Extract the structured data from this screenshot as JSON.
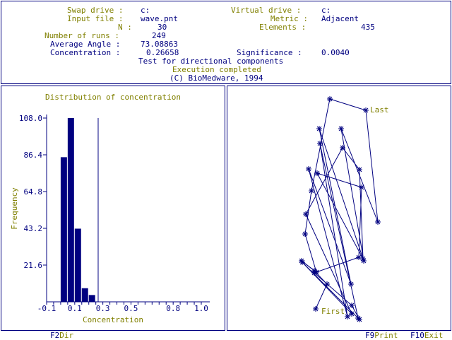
{
  "colors": {
    "olive": "#808000",
    "navy": "#000080",
    "background": "#ffffff"
  },
  "header": {
    "swap_drive_label": "Swap drive :",
    "swap_drive_value": "c:",
    "virtual_drive_label": "Virtual drive :",
    "virtual_drive_value": "c:",
    "input_file_label": "Input file :",
    "input_file_value": "wave.pnt",
    "metric_label": "Metric :",
    "metric_value": "Adjacent",
    "n_label": "N :",
    "n_value": "30",
    "elements_label": "Elements :",
    "elements_value": "435",
    "runs_label": "Number of runs :",
    "runs_value": "249",
    "angle_label": "Average Angle :",
    "angle_value": "73.08863",
    "concentration_label": "Concentration :",
    "concentration_value": "0.26658",
    "significance_label": "Significance :",
    "significance_value": "0.0040",
    "test_line": "Test for directional components",
    "status_line": "Execution completed",
    "copyright_line": "(C) BioMedware, 1994"
  },
  "chart_data": {
    "type": "bar",
    "title": "Distribution of concentration",
    "xlabel": "Concentration",
    "ylabel": "Frequency",
    "y_ticks": [
      "108.0",
      "86.4",
      "64.8",
      "43.2",
      "21.6"
    ],
    "y_tick_values": [
      108.0,
      86.4,
      64.8,
      43.2,
      21.6
    ],
    "x_ticks": [
      "-0.1",
      "0.1",
      "0.3",
      "0.5",
      "0.8",
      "1.0"
    ],
    "x_tick_values": [
      -0.1,
      0.1,
      0.3,
      0.5,
      0.8,
      1.0
    ],
    "ylim": [
      0,
      108
    ],
    "xlim": [
      -0.1,
      1.0
    ],
    "bars": [
      {
        "x0": 0.0,
        "x1": 0.05,
        "value": 85
      },
      {
        "x0": 0.05,
        "x1": 0.1,
        "value": 108
      },
      {
        "x0": 0.1,
        "x1": 0.15,
        "value": 43
      },
      {
        "x0": 0.15,
        "x1": 0.2,
        "value": 8
      },
      {
        "x0": 0.2,
        "x1": 0.25,
        "value": 4
      }
    ],
    "observed_value": 0.26658
  },
  "plot": {
    "first_label": "First",
    "last_label": "Last",
    "points": [
      [
        447,
        437
      ],
      [
        463,
        402
      ],
      [
        445,
        383
      ],
      [
        427,
        369
      ],
      [
        448,
        385
      ],
      [
        432,
        331
      ],
      [
        441,
        270
      ],
      [
        467,
        140
      ],
      [
        518,
        156
      ],
      [
        535,
        314
      ],
      [
        483,
        182
      ],
      [
        515,
        369
      ],
      [
        452,
        182
      ],
      [
        497,
        402
      ],
      [
        437,
        239
      ],
      [
        492,
        448
      ],
      [
        453,
        203
      ],
      [
        507,
        450
      ],
      [
        428,
        371
      ],
      [
        498,
        444
      ],
      [
        433,
        303
      ],
      [
        485,
        209
      ],
      [
        509,
        240
      ],
      [
        514,
        366
      ],
      [
        449,
        245
      ],
      [
        512,
        265
      ],
      [
        508,
        364
      ],
      [
        445,
        386
      ],
      [
        498,
        432
      ],
      [
        509,
        452
      ]
    ]
  },
  "footer": {
    "f2_key": "F2",
    "f2_label": "Dir",
    "f9_key": "F9",
    "f9_label": "Print",
    "f10_key": "F10",
    "f10_label": "Exit"
  }
}
